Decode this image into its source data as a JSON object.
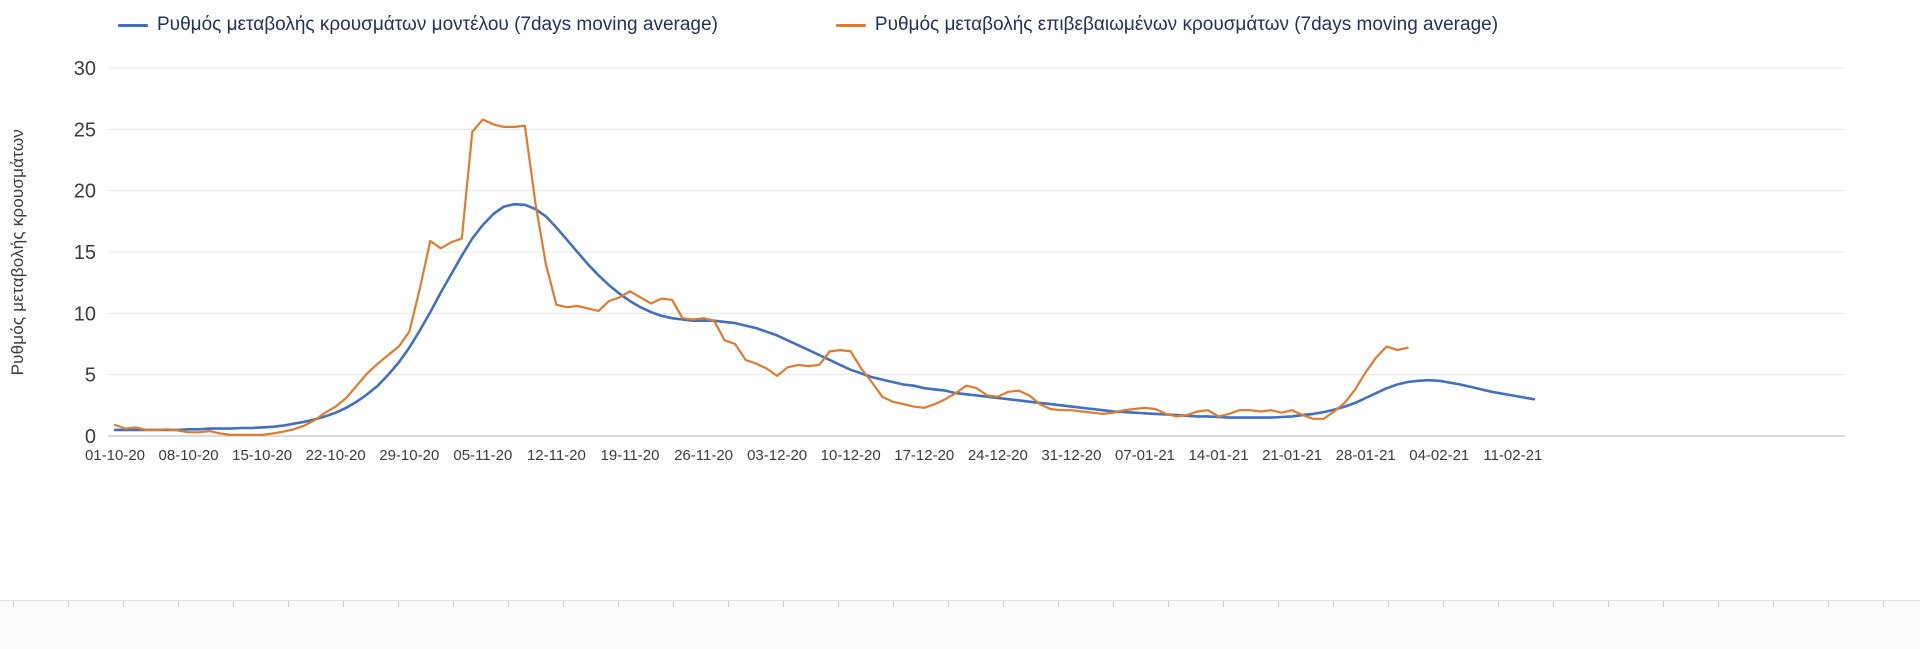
{
  "legend": [
    {
      "label": "Ρυθμός μεταβολής κρουσμάτων μοντέλου (7days moving average)",
      "color": "#4170c0"
    },
    {
      "label": "Ρυθμός μεταβολής επιβεβαιωμένων κρουσμάτων (7days moving average)",
      "color": "#e07b2e"
    }
  ],
  "chart_data": {
    "type": "line",
    "title": "",
    "xlabel": "",
    "ylabel": "Ρυθμός μεταβολής κρουσμάτων",
    "ylim": [
      0,
      30
    ],
    "yticks": [
      0,
      5,
      10,
      15,
      20,
      25,
      30
    ],
    "grid": "horizontal",
    "legend_position": "top",
    "x_start_date": "01-10-20",
    "x_tick_interval_days": 7,
    "xticklabels": [
      "01-10-20",
      "08-10-20",
      "15-10-20",
      "22-10-20",
      "29-10-20",
      "05-11-20",
      "12-11-20",
      "19-11-20",
      "26-11-20",
      "03-12-20",
      "10-12-20",
      "17-12-20",
      "24-12-20",
      "31-12-20",
      "07-01-21",
      "14-01-21",
      "21-01-21",
      "28-01-21",
      "04-02-21",
      "11-02-21"
    ],
    "series": [
      {
        "id": "model",
        "name": "Ρυθμός μεταβολής κρουσμάτων μοντέλου (7days moving average)",
        "color": "#4170c0",
        "values": [
          0.5,
          0.5,
          0.5,
          0.5,
          0.5,
          0.5,
          0.5,
          0.55,
          0.55,
          0.6,
          0.6,
          0.6,
          0.65,
          0.65,
          0.7,
          0.75,
          0.85,
          1.0,
          1.15,
          1.35,
          1.6,
          1.9,
          2.3,
          2.8,
          3.4,
          4.1,
          5.0,
          6.0,
          7.2,
          8.6,
          10.1,
          11.7,
          13.2,
          14.7,
          16.1,
          17.2,
          18.1,
          18.7,
          18.9,
          18.85,
          18.5,
          17.9,
          17.0,
          16.0,
          15.0,
          14.0,
          13.1,
          12.3,
          11.6,
          11.0,
          10.5,
          10.1,
          9.8,
          9.6,
          9.5,
          9.4,
          9.4,
          9.4,
          9.3,
          9.2,
          9.0,
          8.8,
          8.5,
          8.2,
          7.8,
          7.4,
          7.0,
          6.6,
          6.2,
          5.8,
          5.4,
          5.1,
          4.8,
          4.6,
          4.4,
          4.2,
          4.1,
          3.9,
          3.8,
          3.7,
          3.5,
          3.4,
          3.3,
          3.2,
          3.1,
          3.0,
          2.9,
          2.8,
          2.7,
          2.6,
          2.5,
          2.4,
          2.3,
          2.2,
          2.1,
          2.0,
          1.95,
          1.9,
          1.85,
          1.8,
          1.75,
          1.7,
          1.65,
          1.6,
          1.6,
          1.55,
          1.5,
          1.5,
          1.5,
          1.5,
          1.5,
          1.55,
          1.6,
          1.7,
          1.8,
          1.95,
          2.15,
          2.4,
          2.7,
          3.1,
          3.5,
          3.9,
          4.2,
          4.4,
          4.5,
          4.55,
          4.5,
          4.35,
          4.2,
          4.0,
          3.8,
          3.6,
          3.45,
          3.3,
          3.15,
          3.0
        ]
      },
      {
        "id": "confirmed",
        "name": "Ρυθμός μεταβολής επιβεβαιωμένων κρουσμάτων (7days moving average)",
        "color": "#e07b2e",
        "values": [
          0.9,
          0.6,
          0.7,
          0.5,
          0.5,
          0.55,
          0.45,
          0.3,
          0.3,
          0.4,
          0.2,
          0.1,
          0.1,
          0.1,
          0.1,
          0.2,
          0.35,
          0.55,
          0.85,
          1.3,
          1.9,
          2.4,
          3.1,
          4.1,
          5.1,
          5.9,
          6.6,
          7.3,
          8.5,
          12.0,
          15.9,
          15.3,
          15.8,
          16.1,
          24.8,
          25.8,
          25.4,
          25.2,
          25.2,
          25.3,
          19.0,
          14.0,
          10.7,
          10.5,
          10.6,
          10.4,
          10.2,
          11.0,
          11.3,
          11.8,
          11.3,
          10.8,
          11.2,
          11.1,
          9.6,
          9.5,
          9.6,
          9.4,
          7.8,
          7.5,
          6.2,
          5.9,
          5.5,
          4.9,
          5.6,
          5.8,
          5.7,
          5.8,
          6.9,
          7.0,
          6.9,
          5.5,
          4.4,
          3.2,
          2.8,
          2.6,
          2.4,
          2.3,
          2.6,
          3.0,
          3.5,
          4.1,
          3.9,
          3.3,
          3.2,
          3.6,
          3.7,
          3.3,
          2.6,
          2.2,
          2.1,
          2.1,
          2.0,
          1.9,
          1.8,
          1.9,
          2.1,
          2.2,
          2.3,
          2.2,
          1.8,
          1.6,
          1.7,
          2.0,
          2.1,
          1.6,
          1.8,
          2.1,
          2.1,
          2.0,
          2.1,
          1.9,
          2.1,
          1.7,
          1.4,
          1.4,
          2.0,
          2.7,
          3.8,
          5.2,
          6.4,
          7.3,
          7.0,
          7.2,
          null,
          null,
          null,
          null,
          null,
          null,
          null,
          null,
          null,
          null,
          null,
          null
        ]
      }
    ],
    "axis_colors": {
      "grid": "#e7e8ea",
      "zero_line": "#b4b8bd",
      "tick_text": "#3c3c3c"
    }
  }
}
